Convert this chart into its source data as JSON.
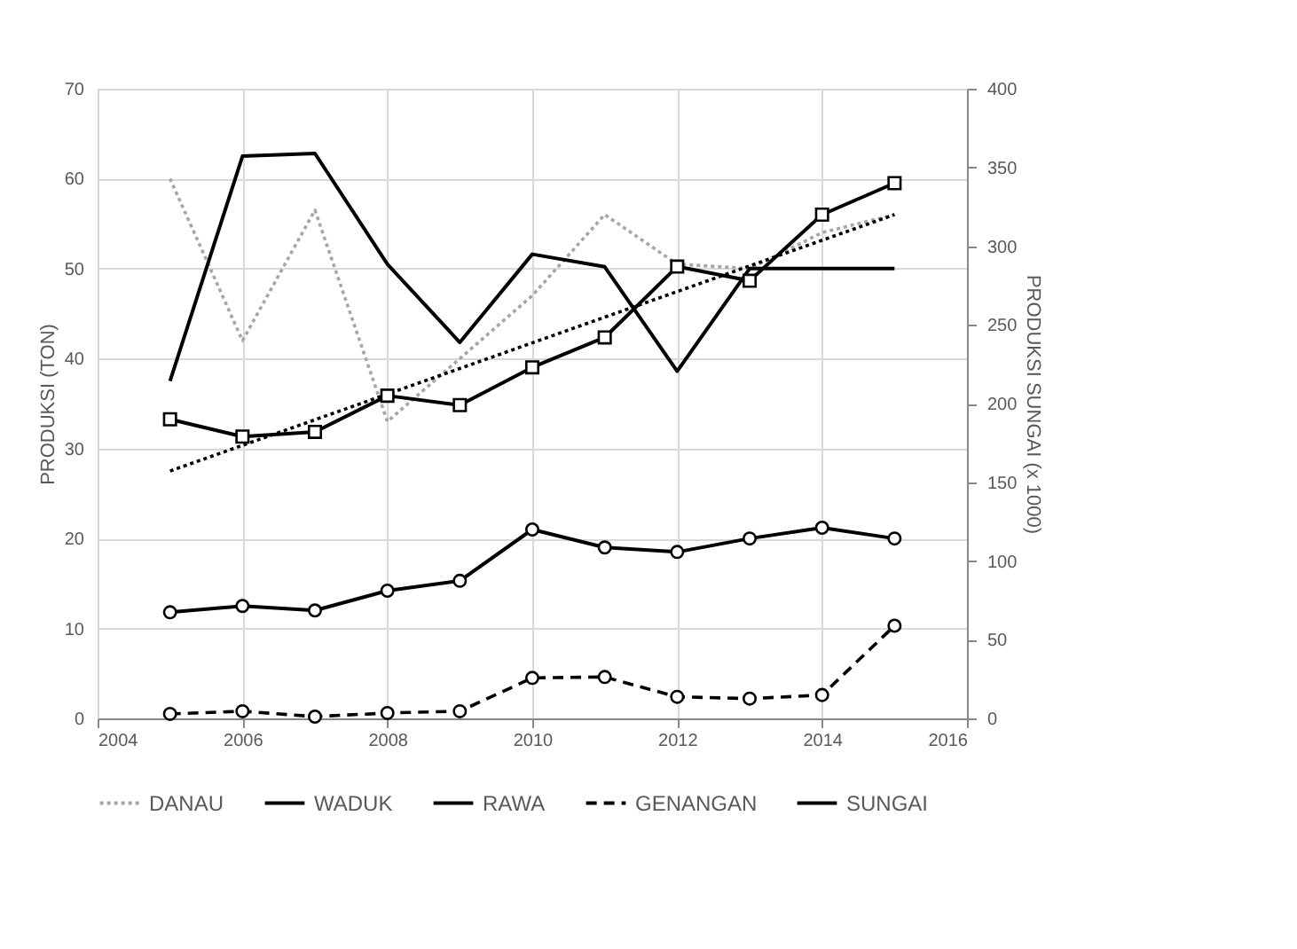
{
  "chart_data": {
    "type": "line",
    "x": [
      2005,
      2006,
      2007,
      2008,
      2009,
      2010,
      2011,
      2012,
      2013,
      2014,
      2015
    ],
    "ylabel": "PRODUKSI (TON)",
    "y2label": "PRODUKSI SUNGAI (x 1000)",
    "xlim": [
      2004,
      2016
    ],
    "xticks": [
      2004,
      2006,
      2008,
      2010,
      2012,
      2014,
      2016
    ],
    "ylim": [
      0,
      70
    ],
    "yticks": [
      0,
      10,
      20,
      30,
      40,
      50,
      60,
      70
    ],
    "y2lim": [
      0,
      400
    ],
    "y2ticks": [
      0,
      50,
      100,
      150,
      200,
      250,
      300,
      350,
      400
    ],
    "grid": true,
    "legend": "bottom",
    "series": [
      {
        "name": "DANAU",
        "color": "#a6a6a6",
        "line_style": "dotted",
        "marker": "none",
        "values": [
          60,
          42,
          56.5,
          33,
          40,
          47,
          56,
          50.5,
          50,
          54,
          56
        ]
      },
      {
        "name": "WADUK",
        "color": "#000000",
        "line_style": "solid",
        "marker": "circle",
        "values": [
          11.8,
          12.5,
          12,
          14.2,
          15.3,
          21,
          19,
          18.5,
          20,
          21.2,
          20
        ]
      },
      {
        "name": "RAWA",
        "color": "#000000",
        "line_style": "solid",
        "marker": "none",
        "values": [
          37.5,
          62.5,
          62.8,
          50.5,
          41.8,
          51.6,
          50.2,
          38.6,
          50,
          50,
          50
        ]
      },
      {
        "name": "GENANGAN",
        "color": "#000000",
        "line_style": "dashed",
        "marker": "circle",
        "values": [
          0.5,
          0.8,
          0.2,
          0.6,
          0.8,
          4.5,
          4.6,
          2.4,
          2.2,
          2.6,
          10.3
        ]
      },
      {
        "name": "SUNGAI",
        "color": "#000000",
        "line_style": "solid",
        "marker": "square",
        "axis": "y2",
        "values": [
          190,
          179,
          182,
          205,
          199,
          223,
          242,
          287,
          278,
          320,
          340
        ]
      },
      {
        "type": "line",
        "color": "#000000",
        "line_style": "dotted",
        "marker": "none",
        "x": [
          2005,
          2015
        ],
        "values": [
          27.5,
          56
        ]
      }
    ]
  }
}
